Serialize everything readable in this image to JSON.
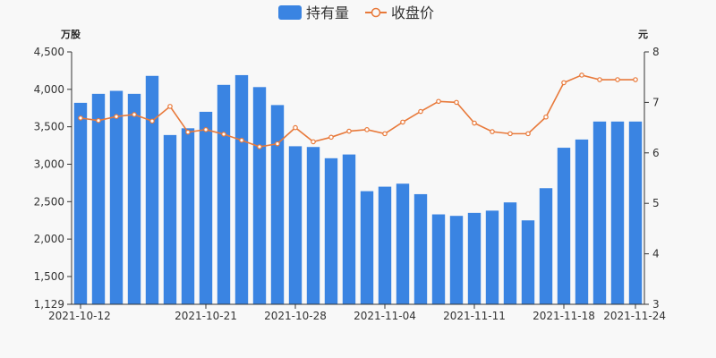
{
  "legend": {
    "holdings_label": "持有量",
    "close_label": "收盘价"
  },
  "colors": {
    "bar": "#3a84e2",
    "line": "#e8793a",
    "axis": "#333333",
    "background": "#f8f8f8"
  },
  "chart_data": {
    "type": "bar",
    "legend_position": "top-center",
    "grid": false,
    "x": [
      "2021-10-12",
      "2021-10-13",
      "2021-10-14",
      "2021-10-15",
      "2021-10-18",
      "2021-10-19",
      "2021-10-20",
      "2021-10-21",
      "2021-10-22",
      "2021-10-25",
      "2021-10-26",
      "2021-10-27",
      "2021-10-28",
      "2021-10-29",
      "2021-11-01",
      "2021-11-02",
      "2021-11-03",
      "2021-11-04",
      "2021-11-05",
      "2021-11-08",
      "2021-11-09",
      "2021-11-10",
      "2021-11-11",
      "2021-11-12",
      "2021-11-15",
      "2021-11-16",
      "2021-11-17",
      "2021-11-18",
      "2021-11-19",
      "2021-11-22",
      "2021-11-23",
      "2021-11-24"
    ],
    "x_tick_labels": [
      "2021-10-12",
      "2021-10-21",
      "2021-10-28",
      "2021-11-04",
      "2021-11-11",
      "2021-11-18",
      "2021-11-24"
    ],
    "y_left": {
      "unit": "万股",
      "min": 1129,
      "max": 4500,
      "ticks": [
        "1,129",
        "1,500",
        "2,000",
        "2,500",
        "3,000",
        "3,500",
        "4,000",
        "4,500"
      ],
      "tick_values": [
        1129,
        1500,
        2000,
        2500,
        3000,
        3500,
        4000,
        4500
      ]
    },
    "y_right": {
      "unit": "元",
      "min": 3,
      "max": 8,
      "ticks": [
        "3",
        "4",
        "5",
        "6",
        "7",
        "8"
      ],
      "tick_values": [
        3,
        4,
        5,
        6,
        7,
        8
      ]
    },
    "series": [
      {
        "name": "持有量",
        "kind": "bar",
        "axis": "left",
        "values": [
          3820,
          3940,
          3980,
          3940,
          4180,
          3390,
          3480,
          3700,
          4060,
          4190,
          4030,
          3790,
          3240,
          3230,
          3080,
          3130,
          2640,
          2700,
          2740,
          2600,
          2330,
          2310,
          2350,
          2380,
          2490,
          2250,
          2680,
          3220,
          3330,
          3570,
          3570,
          3570
        ]
      },
      {
        "name": "收盘价",
        "kind": "line",
        "axis": "right",
        "values": [
          6.69,
          6.64,
          6.72,
          6.76,
          6.63,
          6.92,
          6.41,
          6.46,
          6.37,
          6.25,
          6.12,
          6.18,
          6.5,
          6.22,
          6.31,
          6.43,
          6.46,
          6.38,
          6.61,
          6.82,
          7.02,
          7.0,
          6.59,
          6.42,
          6.38,
          6.38,
          6.71,
          7.39,
          7.54,
          7.45,
          7.45,
          7.45
        ]
      }
    ]
  }
}
